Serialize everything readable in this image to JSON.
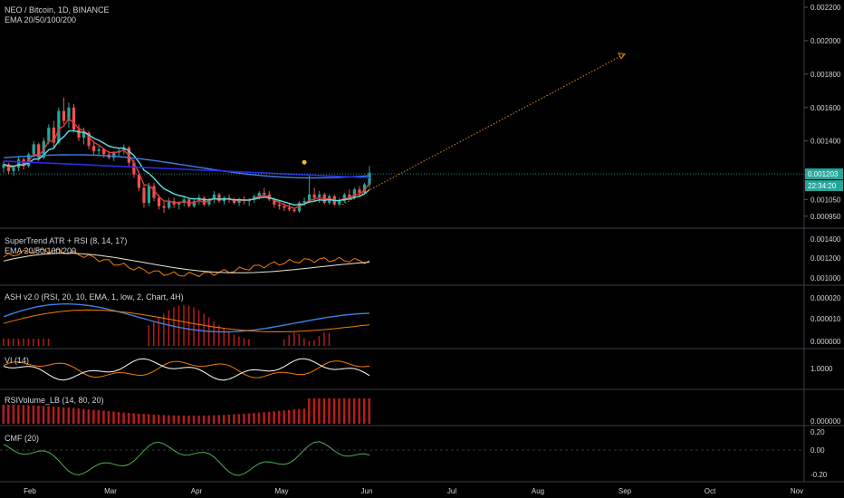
{
  "main_title": "NEO / Bitcoin, 1D, BINANCE",
  "main_subtitle": "EMA 20/50/100/200",
  "price_label": "0.001203",
  "countdown_label": "22:34:20",
  "colors": {
    "bg": "#000000",
    "up": "#26a69a",
    "down": "#ef5350",
    "ema20": "#e53935",
    "ema50": "#5ce1e6",
    "ema100": "#3d7fe0",
    "ema200": "#2a2ae6",
    "projection": "#e08a1e",
    "rsi": "#f57c00",
    "ema_line": "#f0e6d0",
    "ash_hist": "#b71c1c",
    "vi_plus": "#f57c00",
    "vi_minus": "#ffffff",
    "cmf": "#4caf50",
    "accent": "#26a69a"
  },
  "panels": [
    {
      "title": "SuperTrend ATR + RSI (8, 14, 17)",
      "subtitle": "EMA 20/50/100/200",
      "ticks": [
        "0.001400",
        "0.001200",
        "0.001000"
      ]
    },
    {
      "title": "ASH v2.0 (RSI, 20, 10, EMA, 1, low, 2, Chart, 4H)",
      "ticks": [
        "0.000020",
        "0.000010",
        "0.000000"
      ]
    },
    {
      "title": "VI (14)",
      "ticks": [
        "1.0000"
      ]
    },
    {
      "title": "RSIVolume_LB (14, 80, 20)",
      "ticks": [
        "0.000000"
      ]
    },
    {
      "title": "CMF (20)",
      "ticks": [
        "0.20",
        "0.00",
        "-0.20"
      ]
    }
  ],
  "chart_data": {
    "type": "candlestick",
    "price_axis_ticks": [
      "0.002200",
      "0.002000",
      "0.001800",
      "0.001600",
      "0.001400",
      "0.001200",
      "0.001050",
      "0.000950"
    ],
    "last_price": 0.001203,
    "x_ticks": [
      "Feb",
      "Mar",
      "Apr",
      "May",
      "Jun",
      "Jul",
      "Aug",
      "Sep",
      "Oct",
      "Nov"
    ],
    "candles": [
      [
        0.00124,
        0.00128,
        0.00121,
        0.00126
      ],
      [
        0.00126,
        0.00127,
        0.0012,
        0.00122
      ],
      [
        0.00122,
        0.00125,
        0.00119,
        0.00124
      ],
      [
        0.00124,
        0.00131,
        0.00122,
        0.00129
      ],
      [
        0.00129,
        0.0013,
        0.00123,
        0.00125
      ],
      [
        0.00125,
        0.00133,
        0.00124,
        0.00132
      ],
      [
        0.00132,
        0.0014,
        0.0013,
        0.00138
      ],
      [
        0.00138,
        0.00139,
        0.00128,
        0.0013
      ],
      [
        0.0013,
        0.00142,
        0.00129,
        0.0014
      ],
      [
        0.0014,
        0.0015,
        0.00138,
        0.00148
      ],
      [
        0.00148,
        0.00152,
        0.00136,
        0.00139
      ],
      [
        0.00139,
        0.0016,
        0.00138,
        0.00158
      ],
      [
        0.00158,
        0.00166,
        0.0015,
        0.00152
      ],
      [
        0.00152,
        0.00163,
        0.00148,
        0.0016
      ],
      [
        0.0016,
        0.00162,
        0.00145,
        0.00147
      ],
      [
        0.00147,
        0.0015,
        0.0014,
        0.00142
      ],
      [
        0.00142,
        0.00148,
        0.00138,
        0.00145
      ],
      [
        0.00145,
        0.00146,
        0.00135,
        0.00137
      ],
      [
        0.00137,
        0.0014,
        0.00132,
        0.00134
      ],
      [
        0.00134,
        0.00137,
        0.00131,
        0.00135
      ],
      [
        0.00135,
        0.00136,
        0.0013,
        0.00132
      ],
      [
        0.00132,
        0.00134,
        0.00129,
        0.0013
      ],
      [
        0.0013,
        0.00134,
        0.00128,
        0.00133
      ],
      [
        0.00133,
        0.00136,
        0.00131,
        0.00134
      ],
      [
        0.00134,
        0.00138,
        0.00132,
        0.00136
      ],
      [
        0.00136,
        0.00137,
        0.00125,
        0.00127
      ],
      [
        0.00127,
        0.00129,
        0.00118,
        0.0012
      ],
      [
        0.0012,
        0.00122,
        0.0011,
        0.00112
      ],
      [
        0.00112,
        0.00114,
        0.001,
        0.00103
      ],
      [
        0.00103,
        0.00115,
        0.00101,
        0.00113
      ],
      [
        0.00113,
        0.00115,
        0.00104,
        0.00106
      ],
      [
        0.00106,
        0.00108,
        0.00099,
        0.00101
      ],
      [
        0.00101,
        0.00104,
        0.00097,
        0.001
      ],
      [
        0.001,
        0.00106,
        0.00099,
        0.00104
      ],
      [
        0.00104,
        0.00106,
        0.001,
        0.00102
      ],
      [
        0.00102,
        0.00104,
        0.00099,
        0.00103
      ],
      [
        0.00103,
        0.00107,
        0.00101,
        0.00105
      ],
      [
        0.00105,
        0.00106,
        0.001,
        0.00101
      ],
      [
        0.00101,
        0.00105,
        0.001,
        0.00104
      ],
      [
        0.00104,
        0.00108,
        0.00102,
        0.00106
      ],
      [
        0.00106,
        0.00107,
        0.00101,
        0.00102
      ],
      [
        0.00102,
        0.00106,
        0.00101,
        0.00105
      ],
      [
        0.00105,
        0.0011,
        0.00103,
        0.00108
      ],
      [
        0.00108,
        0.00109,
        0.00103,
        0.00104
      ],
      [
        0.00104,
        0.00107,
        0.00102,
        0.00106
      ],
      [
        0.00106,
        0.00108,
        0.00103,
        0.00105
      ],
      [
        0.00105,
        0.00106,
        0.00102,
        0.00103
      ],
      [
        0.00103,
        0.00106,
        0.00101,
        0.00105
      ],
      [
        0.00105,
        0.00107,
        0.00102,
        0.00104
      ],
      [
        0.00104,
        0.00106,
        0.00101,
        0.00105
      ],
      [
        0.00105,
        0.00108,
        0.00103,
        0.00107
      ],
      [
        0.00107,
        0.0011,
        0.00105,
        0.00109
      ],
      [
        0.00109,
        0.00112,
        0.00106,
        0.00108
      ],
      [
        0.00108,
        0.0011,
        0.00104,
        0.00105
      ],
      [
        0.00105,
        0.00106,
        0.001,
        0.00102
      ],
      [
        0.00102,
        0.00104,
        0.00099,
        0.00101
      ],
      [
        0.00101,
        0.00103,
        0.00098,
        0.001
      ],
      [
        0.001,
        0.00103,
        0.00098,
        0.00099
      ],
      [
        0.00099,
        0.001,
        0.00097,
        0.00098
      ],
      [
        0.00098,
        0.00104,
        0.00097,
        0.00103
      ],
      [
        0.00103,
        0.00106,
        0.00101,
        0.00104
      ],
      [
        0.00104,
        0.0012,
        0.00103,
        0.00108
      ],
      [
        0.00108,
        0.00112,
        0.00104,
        0.00106
      ],
      [
        0.00106,
        0.0011,
        0.00103,
        0.00108
      ],
      [
        0.00108,
        0.00109,
        0.00102,
        0.00103
      ],
      [
        0.00103,
        0.00108,
        0.00102,
        0.00107
      ],
      [
        0.00107,
        0.00108,
        0.00101,
        0.00102
      ],
      [
        0.00102,
        0.00106,
        0.00101,
        0.00104
      ],
      [
        0.00104,
        0.00109,
        0.00103,
        0.00108
      ],
      [
        0.00108,
        0.00111,
        0.00105,
        0.00106
      ],
      [
        0.00106,
        0.00112,
        0.00105,
        0.00111
      ],
      [
        0.00111,
        0.00113,
        0.00107,
        0.00109
      ],
      [
        0.00109,
        0.00115,
        0.00108,
        0.00114
      ],
      [
        0.00114,
        0.00125,
        0.00112,
        0.00121
      ]
    ],
    "marker_value": 0.00124,
    "projection": {
      "from_value": 0.00102,
      "to_value": 0.00192
    }
  }
}
